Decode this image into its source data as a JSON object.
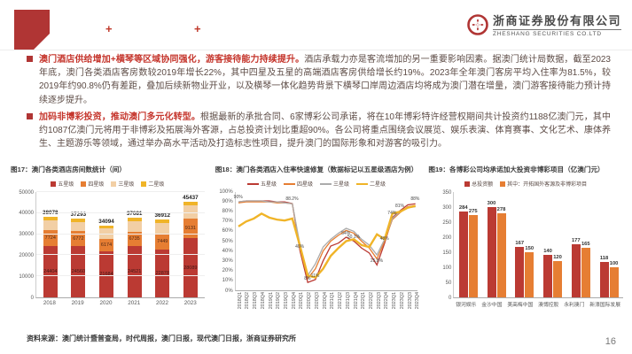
{
  "header": {
    "plus_left": "+",
    "plus_right": "+",
    "logo_cn": "浙商证券股份有限公司",
    "logo_en": "ZHESHANG SECURITIES CO.LTD",
    "brand_color": "#B03534"
  },
  "bullets": [
    {
      "lead": "澳门酒店供给增加+横琴等区域协同强化，游客接待能力持续提升。",
      "body": "酒店承载力亦是客流增加的另一重要影响因素。据澳门统计局数据，截至2023年底，澳门各类酒店客房数较2019年增长22%，其中四星及五星的高端酒店客房供给增长约19%。2023年全年澳门客房平均入住率为81.5%，较2019年约90.8%仍有差距，叠加后续新物业开业，以及横琴一体化趋势背景下横琴口岸周边酒店均将成为澳门潜在增量，澳门游客接待能力预计持续逐步提升。"
    },
    {
      "lead": "加码非博彩投资，推动澳门多元化转型。",
      "body": "根据最新的承批合同、6家博彩公司承诺，将在10年博彩特许经营权期间共计投资约1188亿澳门元，其中约1087亿澳门元将用于非博彩及拓展海外客源，占总投资计划比重超90%。各公司将重点围绕会议展览、娱乐表演、体育赛事、文化艺术、康体养生、主题游乐等领域，通过举办高水平活动及打造标志性项目，提升澳门的国际形象和对游客的吸引力。"
    }
  ],
  "chart_data": [
    {
      "id": "fig17",
      "type": "bar",
      "stacked": true,
      "title": "图17：澳门各类酒店房间数统计（间）",
      "categories": [
        "2018",
        "2019",
        "2020",
        "2021",
        "2022",
        "2023"
      ],
      "series": [
        {
          "name": "五星级",
          "color": "#BB3A33",
          "values": [
            24404,
            24560,
            21684,
            24521,
            22878,
            28089
          ],
          "show_labels": true
        },
        {
          "name": "四星级",
          "color": "#E67E33",
          "values": [
            7724,
            6772,
            6174,
            6735,
            7449,
            9131
          ],
          "show_labels": true
        },
        {
          "name": "三星级",
          "color": "#F2CFA5",
          "values": [
            4450,
            4461,
            4736,
            4925,
            5085,
            6517
          ],
          "show_labels": false
        },
        {
          "name": "二星级",
          "color": "#F0B428",
          "values": [
            1500,
            1500,
            1500,
            1500,
            1500,
            1700
          ],
          "show_labels": false
        }
      ],
      "totals": [
        38078,
        37293,
        34094,
        37681,
        36912,
        45437
      ],
      "ylim": [
        0,
        50000
      ],
      "ytick": 10000,
      "grid": true,
      "legend_position": "top"
    },
    {
      "id": "fig18",
      "type": "line",
      "title": "图18：澳门各类酒店入住率快速修复（数据标记以五星级酒店为例）",
      "x": [
        "2018Q1",
        "2018Q2",
        "2018Q3",
        "2018Q4",
        "2019Q1",
        "2019Q2",
        "2019Q3",
        "2019Q4",
        "2020Q1",
        "2020Q2",
        "2020Q3",
        "2020Q4",
        "2021Q1",
        "2021Q2",
        "2021Q3",
        "2021Q4",
        "2022Q1",
        "2022Q2",
        "2022Q3",
        "2022Q4",
        "2023Q1",
        "2023Q2",
        "2023Q3",
        "2023Q4"
      ],
      "series": [
        {
          "name": "五星级",
          "color": "#BB3A33",
          "width": 1.3,
          "values": [
            90,
            91,
            91,
            91,
            91,
            90,
            90,
            88.2,
            40,
            8,
            11,
            30,
            45,
            48,
            54,
            50.1,
            43,
            38,
            25.8,
            48,
            74,
            81,
            87,
            88
          ]
        },
        {
          "name": "四星级",
          "color": "#E67E33",
          "width": 1.3,
          "values": [
            89,
            90,
            90,
            90,
            90,
            89,
            89,
            88,
            43,
            12,
            22,
            40,
            50,
            56,
            61,
            58,
            50,
            43,
            32,
            50,
            72,
            79,
            85,
            86
          ]
        },
        {
          "name": "三星级",
          "color": "#ABABAB",
          "width": 1.3,
          "values": [
            90,
            91,
            91,
            91,
            90,
            90,
            89,
            88,
            46,
            15,
            27,
            44,
            52,
            58,
            63,
            60,
            52,
            46,
            36,
            52,
            73,
            80,
            84,
            85
          ]
        },
        {
          "name": "二星级",
          "color": "#F0B428",
          "width": 2.4,
          "values": [
            65,
            70,
            73,
            78,
            74,
            72,
            71,
            73,
            45,
            15,
            13,
            22,
            35,
            43,
            50,
            52,
            46,
            44,
            57,
            52,
            78,
            80,
            84,
            86
          ]
        }
      ],
      "point_labels": [
        {
          "i": 0,
          "v": "90%"
        },
        {
          "i": 7,
          "v": "88.2%"
        },
        {
          "i": 8,
          "v": "40%"
        },
        {
          "i": 9,
          "v": "8%"
        },
        {
          "i": 10,
          "v": "11%"
        },
        {
          "i": 14,
          "v": "54%"
        },
        {
          "i": 15,
          "v": "50.1%"
        },
        {
          "i": 18,
          "v": "25.8%"
        },
        {
          "i": 19,
          "v": "48%"
        },
        {
          "i": 20,
          "v": "74%"
        },
        {
          "i": 21,
          "v": "81%"
        },
        {
          "i": 23,
          "v": "88%"
        }
      ],
      "ylim": [
        0,
        100
      ],
      "ytick": 10,
      "yformat": "percent",
      "grid": false,
      "legend_position": "top"
    },
    {
      "id": "fig19",
      "type": "grouped-bar",
      "title": "图19：各博彩公司均承诺加大投资非博彩项目（亿澳门元）",
      "categories": [
        "银河娱乐",
        "金沙中国",
        "美高梅中国",
        "澳博控股",
        "永利澳门",
        "新濠国际发展"
      ],
      "series": [
        {
          "name": "总投资额",
          "color": "#BB3A33",
          "values": [
            284,
            300,
            167,
            140,
            177,
            118
          ]
        },
        {
          "name": "其中：开拓国外客源及非博彩项目",
          "color": "#E67E33",
          "values": [
            275,
            278,
            150,
            120,
            165,
            100
          ]
        }
      ],
      "ylim": [
        0,
        350
      ],
      "ytick": 50,
      "grid": false,
      "legend_position": "top"
    }
  ],
  "footer": {
    "source": "资料来源：澳门统计暨普查局，时代周报，澳门日报，现代澳门日报，浙商证券研究所",
    "page": "16"
  }
}
